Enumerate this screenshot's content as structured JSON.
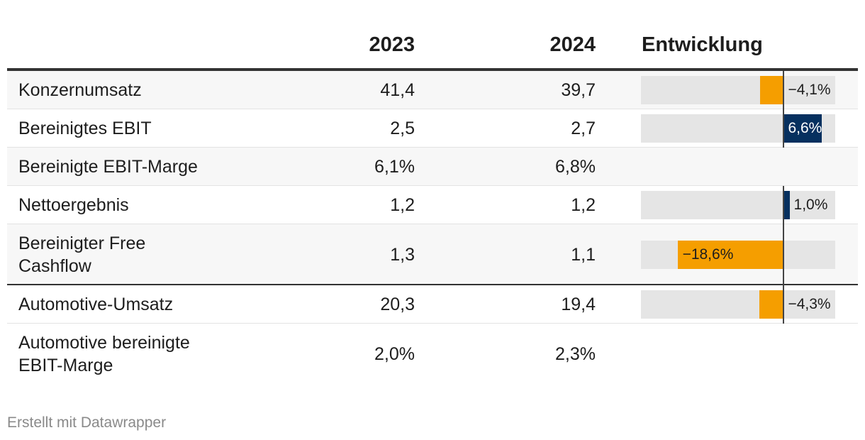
{
  "table": {
    "header": {
      "col_2023": "2023",
      "col_2024": "2024",
      "col_dev": "Entwicklung"
    },
    "rows": [
      {
        "label": "Konzernumsatz",
        "v2023": "41,4",
        "v2024": "39,7",
        "change": -4.1,
        "change_label": "−4,1%"
      },
      {
        "label": "Bereinigtes EBIT",
        "v2023": "2,5",
        "v2024": "2,7",
        "change": 6.6,
        "change_label": "6,6%"
      },
      {
        "label": "Bereinigte EBIT-Marge",
        "v2023": "6,1%",
        "v2024": "6,8%",
        "change": null,
        "change_label": ""
      },
      {
        "label": "Nettoergebnis",
        "v2023": "1,2",
        "v2024": "1,2",
        "change": 1.0,
        "change_label": "1,0%"
      },
      {
        "label": "Bereinigter Free Cashflow",
        "v2023": "1,3",
        "v2024": "1,1",
        "change": -18.6,
        "change_label": "−18,6%"
      },
      {
        "label": "Automotive-Umsatz",
        "v2023": "20,3",
        "v2024": "19,4",
        "change": -4.3,
        "change_label": "−4,3%"
      },
      {
        "label": "Automotive bereinigte EBIT-Marge",
        "v2023": "2,0%",
        "v2024": "2,3%",
        "change": null,
        "change_label": ""
      }
    ]
  },
  "chart_data": {
    "type": "table",
    "columns": [
      "2023",
      "2024",
      "Entwicklung"
    ],
    "rows": [
      {
        "label": "Konzernumsatz",
        "values": [
          41.4,
          39.7
        ],
        "change_pct": -4.1
      },
      {
        "label": "Bereinigtes EBIT",
        "values": [
          2.5,
          2.7
        ],
        "change_pct": 6.6
      },
      {
        "label": "Bereinigte EBIT-Marge",
        "values": [
          "6,1%",
          "6,8%"
        ],
        "change_pct": null
      },
      {
        "label": "Nettoergebnis",
        "values": [
          1.2,
          1.2
        ],
        "change_pct": 1.0
      },
      {
        "label": "Bereinigter Free Cashflow",
        "values": [
          1.3,
          1.1
        ],
        "change_pct": -18.6
      },
      {
        "label": "Automotive-Umsatz",
        "values": [
          20.3,
          19.4
        ],
        "change_pct": -4.3
      },
      {
        "label": "Automotive bereinigte EBIT-Marge",
        "values": [
          "2,0%",
          "2,3%"
        ],
        "change_pct": null
      }
    ],
    "bar_range": [
      -25,
      9
    ],
    "colors": {
      "negative": "#f59e00",
      "positive": "#06305f",
      "bar_background": "#e5e5e5",
      "zero_line": "#444444"
    }
  },
  "footer": {
    "credit": "Erstellt mit Datawrapper"
  }
}
